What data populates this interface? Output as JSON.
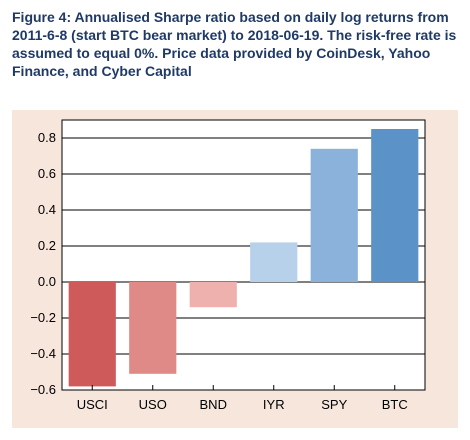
{
  "caption": "Figure 4:  Annualised Sharpe ratio based on daily log returns from 2011-6-8 (start BTC bear market) to 2018-06-19. The risk-free rate is assumed to equal 0%. Price data provided by CoinDesk, Yahoo Finance, and Cyber Capital",
  "chart_data": {
    "type": "bar",
    "categories": [
      "USCI",
      "USO",
      "BND",
      "IYR",
      "SPY",
      "BTC"
    ],
    "values": [
      -0.58,
      -0.51,
      -0.14,
      0.22,
      0.74,
      0.85
    ],
    "bar_colors": [
      "#cf5a5a",
      "#e08a87",
      "#efb1ae",
      "#b7d1ea",
      "#8ab2db",
      "#5b93c8"
    ],
    "yticks": [
      "0.8",
      "0.6",
      "0.4",
      "0.2",
      "0.0",
      "−0.2",
      "−0.4",
      "−0.6"
    ],
    "ytick_values": [
      0.8,
      0.6,
      0.4,
      0.2,
      0.0,
      -0.2,
      -0.4,
      -0.6
    ],
    "ylim": [
      -0.6,
      0.9
    ],
    "grid": true,
    "title": "",
    "xlabel": "",
    "ylabel": ""
  }
}
